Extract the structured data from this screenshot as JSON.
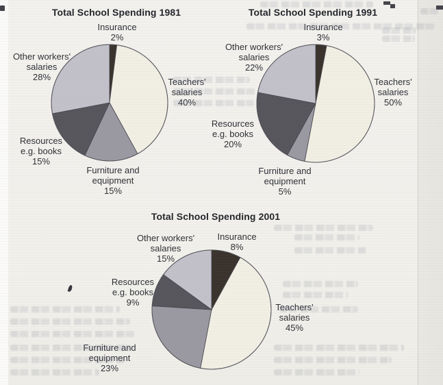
{
  "chart_data": [
    {
      "type": "pie",
      "title": "Total School Spending 1981",
      "categories": [
        "Insurance",
        "Teachers' salaries",
        "Furniture and equipment",
        "Resources e.g. books",
        "Other workers' salaries"
      ],
      "values": [
        2,
        40,
        15,
        15,
        28
      ],
      "unit": "%",
      "start_angle": "12 o'clock",
      "direction": "clockwise",
      "legend": "none, direct slice labels",
      "colors": [
        "#3a332d",
        "#f1efe4",
        "#9a99a2",
        "#56565c",
        "#c2c1ca"
      ],
      "labels": [
        {
          "lines": [
            "Insurance",
            "2%"
          ]
        },
        {
          "lines": [
            "Teachers'",
            "salaries",
            "40%"
          ]
        },
        {
          "lines": [
            "Furniture and",
            "equipment",
            "15%"
          ]
        },
        {
          "lines": [
            "Resources",
            "e.g. books",
            "15%"
          ]
        },
        {
          "lines": [
            "Other workers'",
            "salaries",
            "28%"
          ]
        }
      ]
    },
    {
      "type": "pie",
      "title": "Total School Spending 1991",
      "categories": [
        "Insurance",
        "Teachers' salaries",
        "Furniture and equipment",
        "Resources e.g. books",
        "Other workers' salaries"
      ],
      "values": [
        3,
        50,
        5,
        20,
        22
      ],
      "unit": "%",
      "start_angle": "12 o'clock",
      "direction": "clockwise",
      "legend": "none, direct slice labels",
      "colors": [
        "#3a332d",
        "#f1efe4",
        "#9a99a2",
        "#56565c",
        "#c2c1ca"
      ],
      "labels": [
        {
          "lines": [
            "Insurance",
            "3%"
          ]
        },
        {
          "lines": [
            "Teachers'",
            "salaries",
            "50%"
          ]
        },
        {
          "lines": [
            "Furniture and",
            "equipment",
            "5%"
          ]
        },
        {
          "lines": [
            "Resources",
            "e.g. books",
            "20%"
          ]
        },
        {
          "lines": [
            "Other workers'",
            "salaries",
            "22%"
          ]
        }
      ]
    },
    {
      "type": "pie",
      "title": "Total School Spending 2001",
      "categories": [
        "Insurance",
        "Teachers' salaries",
        "Furniture and equipment",
        "Resources e.g. books",
        "Other workers' salaries"
      ],
      "values": [
        8,
        45,
        23,
        9,
        15
      ],
      "unit": "%",
      "start_angle": "12 o'clock",
      "direction": "clockwise",
      "legend": "none, direct slice labels",
      "colors": [
        "#3a332d",
        "#f1efe4",
        "#9a99a2",
        "#56565c",
        "#c2c1ca"
      ],
      "labels": [
        {
          "lines": [
            "Insurance",
            "8%"
          ]
        },
        {
          "lines": [
            "Teachers'",
            "salaries",
            "45%"
          ]
        },
        {
          "lines": [
            "Furniture and",
            "equipment",
            "23%"
          ]
        },
        {
          "lines": [
            "Resources",
            "e.g. books",
            "9%"
          ]
        },
        {
          "lines": [
            "Other workers'",
            "salaries",
            "15%"
          ]
        }
      ]
    }
  ],
  "page_style": {
    "paper_color": "#f1f0ec",
    "pie_outline_color": "#55555c",
    "text_color": "#2e3036"
  }
}
